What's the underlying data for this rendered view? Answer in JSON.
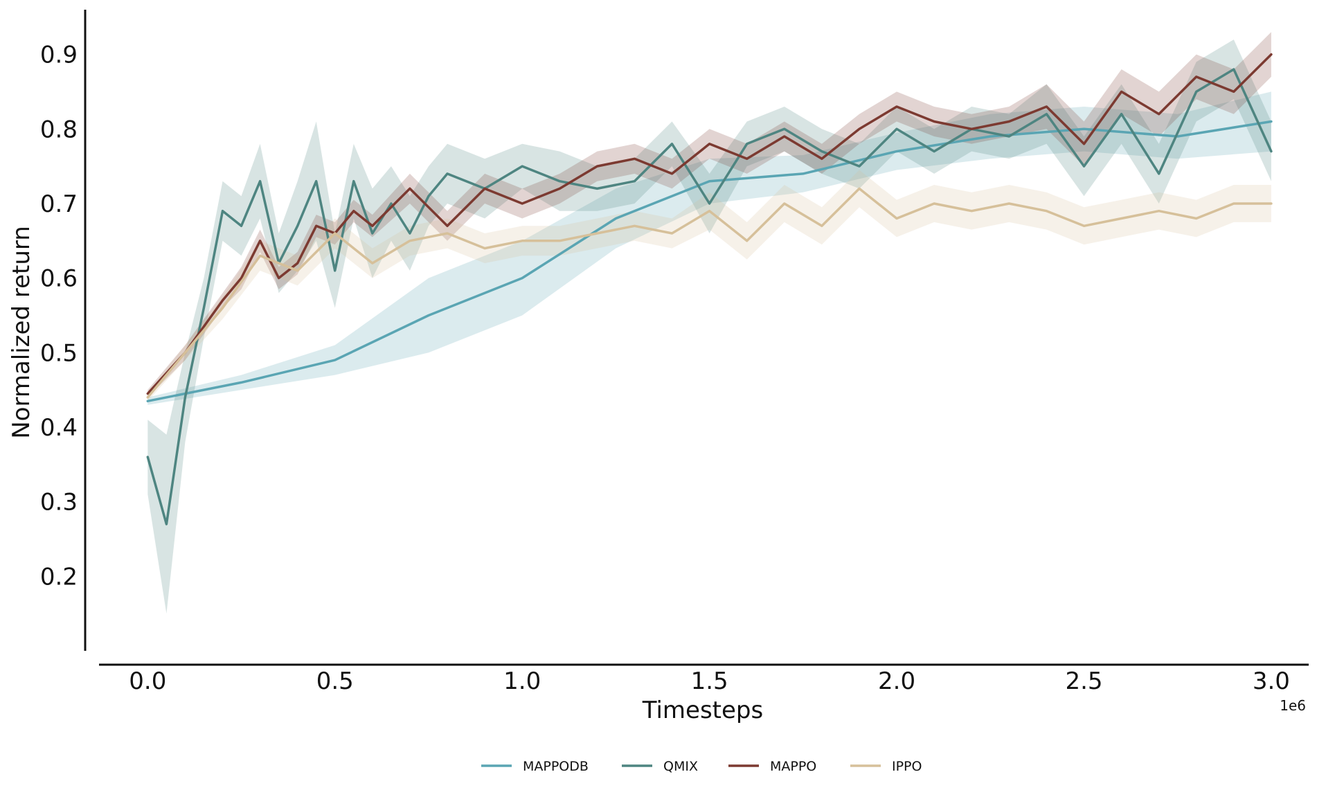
{
  "chart_data": {
    "type": "line",
    "title": "",
    "xlabel": "Timesteps",
    "ylabel": "Normalized return",
    "x_offset_label": "1e6",
    "xlim": [
      -0.13,
      3.1
    ],
    "ylim": [
      0.1,
      0.96
    ],
    "xticks": [
      0.0,
      0.5,
      1.0,
      1.5,
      2.0,
      2.5,
      3.0
    ],
    "xtick_labels": [
      "0.0",
      "0.5",
      "1.0",
      "1.5",
      "2.0",
      "2.5",
      "3.0"
    ],
    "yticks": [
      0.2,
      0.3,
      0.4,
      0.5,
      0.6,
      0.7,
      0.8,
      0.9
    ],
    "ytick_labels": [
      "0.2",
      "0.3",
      "0.4",
      "0.5",
      "0.6",
      "0.7",
      "0.8",
      "0.9"
    ],
    "grid": false,
    "legend_position": "bottom-center",
    "series": [
      {
        "name": "MAPPODB",
        "color": "#5aa5b3",
        "x": [
          0.0,
          0.25,
          0.5,
          0.75,
          1.0,
          1.25,
          1.5,
          1.75,
          2.0,
          2.25,
          2.5,
          2.75,
          3.0
        ],
        "values": [
          0.435,
          0.46,
          0.49,
          0.55,
          0.6,
          0.68,
          0.73,
          0.74,
          0.77,
          0.79,
          0.8,
          0.79,
          0.81
        ],
        "spread": [
          0.005,
          0.01,
          0.02,
          0.05,
          0.05,
          0.04,
          0.03,
          0.025,
          0.025,
          0.03,
          0.03,
          0.03,
          0.04
        ]
      },
      {
        "name": "QMIX",
        "color": "#4e8581",
        "x": [
          0.0,
          0.05,
          0.1,
          0.15,
          0.2,
          0.25,
          0.3,
          0.35,
          0.4,
          0.45,
          0.5,
          0.55,
          0.6,
          0.65,
          0.7,
          0.75,
          0.8,
          0.9,
          1.0,
          1.1,
          1.2,
          1.3,
          1.4,
          1.5,
          1.6,
          1.7,
          1.8,
          1.9,
          2.0,
          2.1,
          2.2,
          2.3,
          2.4,
          2.5,
          2.6,
          2.7,
          2.8,
          2.9,
          3.0
        ],
        "values": [
          0.36,
          0.27,
          0.44,
          0.56,
          0.69,
          0.67,
          0.73,
          0.62,
          0.67,
          0.73,
          0.61,
          0.73,
          0.66,
          0.7,
          0.66,
          0.71,
          0.74,
          0.72,
          0.75,
          0.73,
          0.72,
          0.73,
          0.78,
          0.7,
          0.78,
          0.8,
          0.77,
          0.75,
          0.8,
          0.77,
          0.8,
          0.79,
          0.82,
          0.75,
          0.82,
          0.74,
          0.85,
          0.88,
          0.77
        ],
        "spread": [
          0.05,
          0.12,
          0.06,
          0.04,
          0.04,
          0.04,
          0.05,
          0.04,
          0.06,
          0.08,
          0.05,
          0.05,
          0.06,
          0.05,
          0.05,
          0.04,
          0.04,
          0.04,
          0.03,
          0.04,
          0.03,
          0.03,
          0.03,
          0.04,
          0.03,
          0.03,
          0.03,
          0.03,
          0.03,
          0.03,
          0.03,
          0.03,
          0.04,
          0.04,
          0.04,
          0.04,
          0.04,
          0.04,
          0.04
        ]
      },
      {
        "name": "MAPPO",
        "color": "#7c3a31",
        "x": [
          0.0,
          0.1,
          0.2,
          0.25,
          0.3,
          0.35,
          0.4,
          0.45,
          0.5,
          0.55,
          0.6,
          0.7,
          0.8,
          0.9,
          1.0,
          1.1,
          1.2,
          1.3,
          1.4,
          1.5,
          1.6,
          1.7,
          1.8,
          1.9,
          2.0,
          2.1,
          2.2,
          2.3,
          2.4,
          2.5,
          2.6,
          2.7,
          2.8,
          2.9,
          3.0
        ],
        "values": [
          0.445,
          0.5,
          0.57,
          0.6,
          0.65,
          0.6,
          0.62,
          0.67,
          0.66,
          0.69,
          0.67,
          0.72,
          0.67,
          0.72,
          0.7,
          0.72,
          0.75,
          0.76,
          0.74,
          0.78,
          0.76,
          0.79,
          0.76,
          0.8,
          0.83,
          0.81,
          0.8,
          0.81,
          0.83,
          0.78,
          0.85,
          0.82,
          0.87,
          0.85,
          0.9
        ],
        "spread": [
          0.005,
          0.01,
          0.01,
          0.015,
          0.015,
          0.015,
          0.015,
          0.015,
          0.015,
          0.015,
          0.015,
          0.02,
          0.02,
          0.02,
          0.02,
          0.02,
          0.02,
          0.02,
          0.02,
          0.02,
          0.02,
          0.02,
          0.02,
          0.02,
          0.02,
          0.02,
          0.02,
          0.02,
          0.03,
          0.03,
          0.03,
          0.03,
          0.03,
          0.03,
          0.03
        ]
      },
      {
        "name": "IPPO",
        "color": "#d6c09a",
        "x": [
          0.0,
          0.1,
          0.2,
          0.3,
          0.4,
          0.5,
          0.6,
          0.7,
          0.8,
          0.9,
          1.0,
          1.1,
          1.2,
          1.3,
          1.4,
          1.5,
          1.6,
          1.7,
          1.8,
          1.9,
          2.0,
          2.1,
          2.2,
          2.3,
          2.4,
          2.5,
          2.6,
          2.7,
          2.8,
          2.9,
          3.0
        ],
        "values": [
          0.44,
          0.5,
          0.56,
          0.63,
          0.61,
          0.66,
          0.62,
          0.65,
          0.66,
          0.64,
          0.65,
          0.65,
          0.66,
          0.67,
          0.66,
          0.69,
          0.65,
          0.7,
          0.67,
          0.72,
          0.68,
          0.7,
          0.69,
          0.7,
          0.69,
          0.67,
          0.68,
          0.69,
          0.68,
          0.7,
          0.7
        ],
        "spread": [
          0.005,
          0.01,
          0.015,
          0.02,
          0.02,
          0.02,
          0.02,
          0.02,
          0.02,
          0.02,
          0.02,
          0.02,
          0.02,
          0.02,
          0.02,
          0.025,
          0.025,
          0.025,
          0.025,
          0.025,
          0.025,
          0.025,
          0.025,
          0.025,
          0.025,
          0.025,
          0.025,
          0.025,
          0.025,
          0.025,
          0.025
        ]
      }
    ]
  }
}
